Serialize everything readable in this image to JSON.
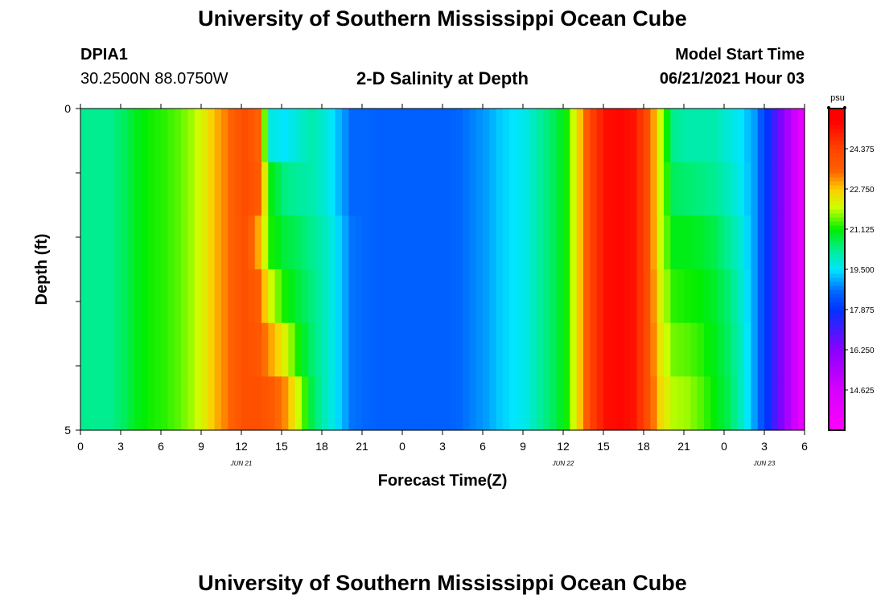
{
  "header": {
    "title": "University of Southern Mississippi Ocean Cube",
    "station": "DPIA1",
    "coords": "30.2500N  88.0750W",
    "subtitle": "2-D Salinity at Depth",
    "model_label": "Model Start Time",
    "model_time": "06/21/2021 Hour 03"
  },
  "footer": {
    "title": "University of Southern Mississippi Ocean Cube"
  },
  "chart_data": {
    "type": "heatmap",
    "title": "2-D Salinity at Depth",
    "xlabel": "Forecast Time(Z)",
    "ylabel": "Depth (ft)",
    "colorbar_unit": "psu",
    "x_ticks": [
      "0",
      "3",
      "6",
      "9",
      "12",
      "15",
      "18",
      "21",
      "0",
      "3",
      "6",
      "9",
      "12",
      "15",
      "18",
      "21",
      "0",
      "3",
      "6"
    ],
    "date_labels": [
      {
        "label": "JUN 21",
        "hour": 12
      },
      {
        "label": "JUN 22",
        "hour": 36
      },
      {
        "label": "JUN 23",
        "hour": 51
      }
    ],
    "x_range_hours": [
      0,
      54
    ],
    "y_ticks": [
      "0",
      "5"
    ],
    "ylim": [
      0,
      5
    ],
    "depth_levels": [
      0,
      1,
      2,
      3,
      4,
      5
    ],
    "color_levels": [
      {
        "value": 13.0,
        "color": "#ff00ff"
      },
      {
        "value": 14.625,
        "color": "#d700ff"
      },
      {
        "value": 16.25,
        "color": "#8a00ff"
      },
      {
        "value": 17.875,
        "color": "#0033ff"
      },
      {
        "value": 18.6,
        "color": "#0066ff"
      },
      {
        "value": 19.5,
        "color": "#00e6ff"
      },
      {
        "value": 20.3,
        "color": "#00ee90"
      },
      {
        "value": 21.125,
        "color": "#00ee00"
      },
      {
        "value": 22.0,
        "color": "#ccff00"
      },
      {
        "value": 22.75,
        "color": "#ffcc00"
      },
      {
        "value": 23.5,
        "color": "#ff6000"
      },
      {
        "value": 24.375,
        "color": "#ff4400"
      },
      {
        "value": 25.5,
        "color": "#ff0000"
      }
    ],
    "colorbar_ticks": [
      24.375,
      22.75,
      21.125,
      19.5,
      17.875,
      16.25,
      14.625
    ],
    "colorbar_tick_labels": [
      "24.375",
      "22.750",
      "21.125",
      "19.500",
      "17.875",
      "16.250",
      "14.625"
    ],
    "colorbar_range": [
      13.0,
      26.0
    ],
    "time_hours": [
      0,
      1,
      2,
      3,
      4,
      5,
      6,
      7,
      8,
      9,
      10,
      11,
      12,
      13,
      14,
      15,
      16,
      17,
      18,
      19,
      20,
      21,
      22,
      23,
      24,
      25,
      26,
      27,
      28,
      29,
      30,
      31,
      32,
      33,
      34,
      35,
      36,
      37,
      38,
      39,
      40,
      41,
      42,
      43,
      44,
      45,
      46,
      47,
      48,
      49,
      50,
      51,
      52,
      53,
      54
    ],
    "salinity": [
      [
        20.3,
        20.3,
        20.3,
        20.6,
        21.0,
        21.2,
        21.3,
        21.5,
        21.8,
        22.3,
        23.0,
        23.5,
        24.1,
        23.5,
        19.7,
        19.5,
        19.8,
        20.1,
        19.8,
        19.2,
        18.6,
        18.6,
        18.5,
        18.5,
        18.5,
        18.5,
        18.5,
        18.5,
        18.6,
        18.8,
        19.0,
        19.3,
        19.5,
        19.7,
        20.2,
        20.6,
        21.2,
        22.8,
        24.5,
        25.3,
        25.4,
        25.2,
        24.1,
        22.0,
        20.3,
        20.1,
        20.1,
        20.1,
        19.8,
        19.5,
        19.0,
        17.8,
        16.4,
        14.8,
        13.3
      ],
      [
        20.3,
        20.3,
        20.3,
        20.6,
        21.0,
        21.2,
        21.3,
        21.5,
        21.8,
        22.3,
        23.0,
        23.5,
        24.1,
        23.7,
        21.0,
        20.4,
        20.2,
        20.1,
        19.8,
        19.2,
        18.6,
        18.6,
        18.5,
        18.5,
        18.5,
        18.5,
        18.5,
        18.5,
        18.6,
        18.8,
        19.0,
        19.3,
        19.5,
        19.7,
        20.2,
        20.6,
        21.2,
        22.8,
        24.5,
        25.3,
        25.4,
        25.2,
        24.1,
        22.0,
        20.6,
        20.5,
        20.4,
        20.3,
        20.0,
        19.6,
        19.0,
        17.8,
        16.4,
        14.8,
        13.3
      ],
      [
        20.3,
        20.3,
        20.3,
        20.6,
        21.0,
        21.2,
        21.3,
        21.5,
        21.8,
        22.3,
        23.0,
        23.5,
        24.0,
        23.0,
        21.2,
        20.8,
        20.6,
        20.3,
        20.0,
        19.4,
        18.7,
        18.6,
        18.5,
        18.5,
        18.5,
        18.5,
        18.5,
        18.5,
        18.6,
        18.8,
        19.0,
        19.3,
        19.5,
        19.7,
        20.2,
        20.6,
        21.2,
        22.8,
        24.5,
        25.3,
        25.4,
        25.2,
        24.1,
        22.0,
        21.0,
        21.0,
        20.9,
        20.7,
        20.3,
        19.8,
        19.0,
        17.8,
        16.4,
        14.8,
        13.3
      ],
      [
        20.3,
        20.3,
        20.3,
        20.6,
        21.0,
        21.2,
        21.3,
        21.5,
        21.8,
        22.3,
        23.0,
        23.5,
        24.0,
        23.6,
        22.0,
        21.2,
        20.8,
        20.4,
        20.0,
        19.4,
        18.7,
        18.6,
        18.5,
        18.5,
        18.5,
        18.5,
        18.5,
        18.5,
        18.6,
        18.8,
        19.0,
        19.3,
        19.5,
        19.7,
        20.2,
        20.6,
        21.2,
        22.8,
        24.5,
        25.3,
        25.4,
        25.2,
        24.1,
        22.2,
        21.3,
        21.2,
        21.1,
        20.9,
        20.5,
        19.9,
        19.0,
        17.8,
        16.4,
        14.8,
        13.3
      ],
      [
        20.3,
        20.3,
        20.3,
        20.6,
        21.0,
        21.2,
        21.3,
        21.5,
        21.8,
        22.3,
        23.0,
        23.5,
        24.0,
        23.8,
        23.0,
        22.2,
        21.2,
        20.5,
        20.0,
        19.4,
        18.7,
        18.6,
        18.5,
        18.5,
        18.5,
        18.5,
        18.5,
        18.5,
        18.6,
        18.8,
        19.0,
        19.3,
        19.5,
        19.7,
        20.2,
        20.6,
        21.2,
        22.8,
        24.5,
        25.3,
        25.4,
        25.2,
        24.1,
        22.4,
        21.6,
        21.5,
        21.3,
        21.0,
        20.6,
        20.0,
        19.0,
        17.8,
        16.4,
        14.8,
        13.3
      ],
      [
        20.3,
        20.3,
        20.3,
        20.6,
        21.0,
        21.2,
        21.3,
        21.5,
        21.8,
        22.3,
        23.0,
        23.5,
        24.0,
        24.0,
        23.7,
        23.2,
        22.0,
        20.7,
        20.0,
        19.4,
        18.7,
        18.6,
        18.5,
        18.5,
        18.5,
        18.5,
        18.5,
        18.5,
        18.6,
        18.8,
        19.0,
        19.3,
        19.5,
        19.7,
        20.2,
        20.6,
        21.2,
        22.8,
        24.5,
        25.3,
        25.4,
        25.2,
        24.1,
        22.6,
        21.9,
        21.8,
        21.5,
        21.1,
        20.7,
        20.0,
        19.0,
        17.8,
        16.4,
        14.8,
        13.3
      ]
    ]
  }
}
